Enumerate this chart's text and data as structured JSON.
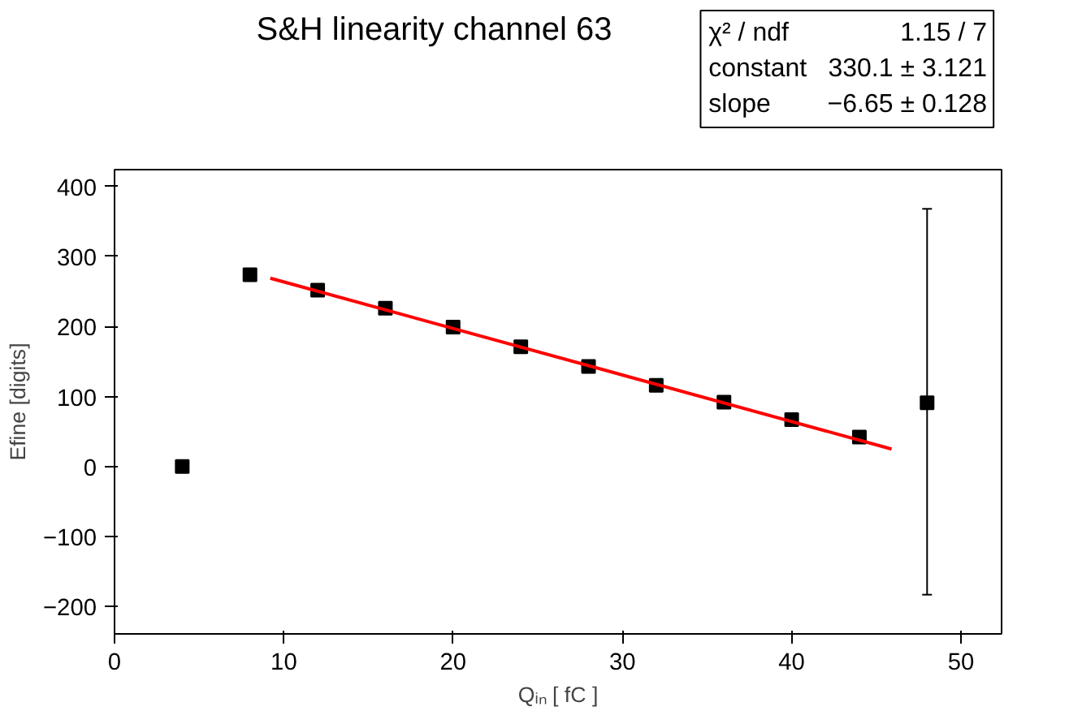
{
  "chart_data": {
    "type": "scatter",
    "title": "S&H linearity channel 63",
    "xlabel": "Qᵢₙ [ fC ]",
    "ylabel": "Efine [digits]",
    "x": [
      4,
      8,
      12,
      16,
      20,
      24,
      28,
      32,
      36,
      40,
      44,
      48
    ],
    "series": [
      {
        "color": "#000000",
        "marker": "square",
        "values": [
          0,
          274,
          252,
          226,
          199,
          171,
          143,
          116,
          92,
          67,
          42,
          91
        ],
        "errors": [
          null,
          null,
          null,
          null,
          null,
          null,
          null,
          null,
          null,
          null,
          6,
          [
            -183,
            368
          ]
        ]
      },
      {
        "type": "line",
        "color": "#ff0000",
        "x": [
          9.2,
          45.9
        ],
        "values": [
          269,
          25
        ]
      }
    ],
    "xlim": [
      0,
      52.4
    ],
    "ylim": [
      -239,
      424
    ],
    "xticks": [
      0,
      10,
      20,
      30,
      40,
      50
    ],
    "yticks": [
      -200,
      -100,
      0,
      100,
      200,
      300,
      400
    ],
    "grid": false,
    "annotations": [
      "χ² / ndf",
      "1.15 / 7",
      "constant",
      "330.1 ± 3.121",
      "slope",
      "−6.65 ± 0.128"
    ]
  }
}
